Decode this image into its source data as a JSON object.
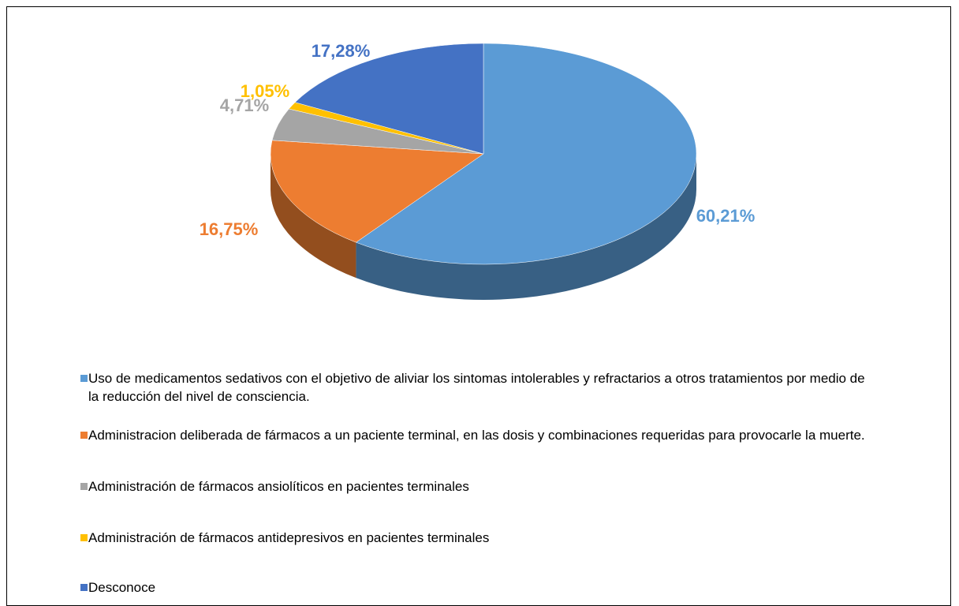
{
  "chart_data": {
    "type": "pie",
    "categories": [
      "Uso de medicamentos sedativos con el objetivo de aliviar los sintomas intolerables y refractarios a otros tratamientos por medio de la reducción del nivel de consciencia.",
      "Administracion deliberada de fármacos a un paciente terminal, en las dosis y combinaciones requeridas para provocarle la muerte.",
      "Administración de fármacos ansiolíticos en pacientes terminales",
      "Administración de fármacos antidepresivos en pacientes terminales",
      "Desconoce"
    ],
    "values": [
      60.21,
      16.75,
      4.71,
      1.05,
      17.28
    ],
    "value_labels": [
      "60,21%",
      "16,75%",
      "4,71%",
      "1,05%",
      "17,28%"
    ],
    "colors": [
      "#5b9bd5",
      "#ed7d31",
      "#a5a5a5",
      "#ffc000",
      "#4472c4"
    ],
    "legend": "bottom"
  }
}
